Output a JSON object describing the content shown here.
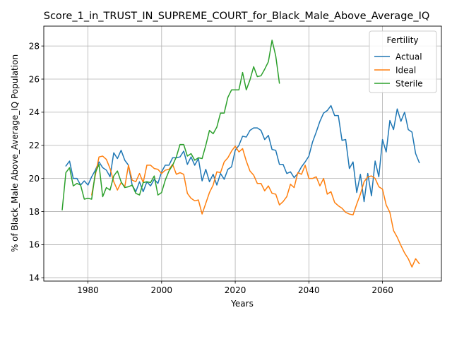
{
  "chart_data": {
    "type": "line",
    "title": "Score_1_in_TRUST_IN_SUPREME_COURT_for_Black_Male_Above_Average_IQ",
    "xlabel": "Years",
    "ylabel": "% of Black_Male Above_Average_IQ Population",
    "xlim": [
      1968,
      2076
    ],
    "ylim": [
      13.8,
      29.2
    ],
    "xticks": [
      1980,
      2000,
      2020,
      2040,
      2060
    ],
    "yticks": [
      14,
      16,
      18,
      20,
      22,
      24,
      26,
      28
    ],
    "grid": true,
    "legend": {
      "title": "Fertility",
      "placement": "top-right"
    },
    "series": [
      {
        "name": "Actual",
        "color": "#1f77b4",
        "x": [
          1974,
          1975,
          1976,
          1977,
          1978,
          1979,
          1980,
          1981,
          1982,
          1983,
          1984,
          1985,
          1986,
          1987,
          1988,
          1989,
          1990,
          1991,
          1992,
          1993,
          1994,
          1995,
          1996,
          1997,
          1998,
          1999,
          2000,
          2001,
          2002,
          2003,
          2004,
          2005,
          2006,
          2007,
          2008,
          2009,
          2010,
          2011,
          2012,
          2013,
          2014,
          2015,
          2016,
          2017,
          2018,
          2019,
          2020,
          2021,
          2022,
          2023,
          2024,
          2025,
          2026,
          2027,
          2028,
          2029,
          2030,
          2031,
          2032,
          2033,
          2034,
          2035,
          2036,
          2037,
          2038,
          2039,
          2040,
          2041,
          2042,
          2043,
          2044,
          2045,
          2046,
          2047,
          2048,
          2049,
          2050,
          2051,
          2052,
          2053,
          2054,
          2055,
          2056,
          2057,
          2058,
          2059,
          2060,
          2061,
          2062,
          2063,
          2064,
          2065,
          2066,
          2067,
          2068,
          2069,
          2070
        ],
        "y": [
          20.75,
          21.05,
          20.0,
          20.0,
          19.6,
          19.85,
          19.6,
          20.1,
          20.5,
          21.0,
          20.65,
          20.5,
          20.1,
          21.55,
          21.2,
          21.7,
          21.1,
          20.8,
          19.6,
          19.2,
          19.8,
          19.2,
          19.8,
          19.55,
          19.95,
          19.7,
          20.4,
          20.8,
          20.8,
          21.25,
          21.25,
          21.3,
          21.65,
          20.85,
          21.3,
          20.8,
          21.2,
          19.85,
          20.55,
          19.8,
          20.25,
          19.6,
          20.3,
          19.95,
          20.55,
          20.7,
          21.7,
          22.0,
          22.55,
          22.5,
          22.9,
          23.05,
          23.05,
          22.9,
          22.35,
          22.6,
          21.75,
          21.7,
          20.85,
          20.85,
          20.3,
          20.4,
          20.05,
          20.3,
          20.7,
          21.0,
          21.35,
          22.2,
          22.8,
          23.45,
          23.95,
          24.1,
          24.4,
          23.8,
          23.8,
          22.3,
          22.35,
          20.6,
          21.0,
          19.15,
          20.25,
          18.6,
          20.3,
          18.95,
          21.05,
          20.1,
          22.35,
          21.6,
          23.5,
          22.95,
          24.2,
          23.45,
          24.0,
          22.95,
          22.8,
          21.5,
          20.95
        ]
      },
      {
        "name": "Ideal",
        "color": "#ff7f0e",
        "x": [
          1981,
          1982,
          1983,
          1984,
          1985,
          1986,
          1987,
          1988,
          1989,
          1990,
          1991,
          1992,
          1993,
          1994,
          1995,
          1996,
          1997,
          1998,
          1999,
          2000,
          2001,
          2002,
          2003,
          2004,
          2005,
          2006,
          2007,
          2008,
          2009,
          2010,
          2011,
          2012,
          2013,
          2014,
          2015,
          2016,
          2017,
          2018,
          2019,
          2020,
          2021,
          2022,
          2023,
          2024,
          2025,
          2026,
          2027,
          2028,
          2029,
          2030,
          2031,
          2032,
          2033,
          2034,
          2035,
          2036,
          2037,
          2038,
          2039,
          2040,
          2041,
          2042,
          2043,
          2044,
          2045,
          2046,
          2047,
          2048,
          2049,
          2050,
          2051,
          2052,
          2053,
          2054,
          2055,
          2056,
          2057,
          2058,
          2059,
          2060,
          2061,
          2062,
          2063,
          2064,
          2065,
          2066,
          2067,
          2068,
          2069,
          2070
        ],
        "y": [
          19.0,
          20.2,
          21.3,
          21.35,
          21.15,
          20.6,
          19.8,
          19.3,
          19.75,
          19.5,
          20.8,
          19.9,
          19.8,
          20.3,
          19.75,
          20.8,
          20.8,
          20.6,
          20.55,
          20.3,
          20.5,
          20.55,
          20.85,
          20.25,
          20.35,
          20.25,
          19.1,
          18.8,
          18.65,
          18.7,
          17.85,
          18.5,
          19.15,
          19.6,
          20.4,
          20.35,
          21.0,
          21.25,
          21.65,
          21.95,
          21.6,
          21.8,
          21.05,
          20.45,
          20.2,
          19.7,
          19.7,
          19.25,
          19.55,
          19.1,
          19.05,
          18.4,
          18.6,
          18.9,
          19.65,
          19.45,
          20.35,
          20.25,
          20.8,
          20.0,
          20.0,
          20.1,
          19.55,
          20.0,
          19.05,
          19.2,
          18.55,
          18.35,
          18.2,
          17.95,
          17.85,
          17.8,
          18.45,
          19.05,
          19.8,
          20.1,
          20.15,
          20.0,
          19.5,
          19.35,
          18.4,
          17.95,
          16.85,
          16.45,
          15.95,
          15.5,
          15.15,
          14.65,
          15.15,
          14.85
        ]
      },
      {
        "name": "Sterile",
        "color": "#2ca02c",
        "x": [
          1973,
          1974,
          1975,
          1976,
          1977,
          1978,
          1979,
          1980,
          1981,
          1982,
          1983,
          1984,
          1985,
          1986,
          1987,
          1988,
          1989,
          1990,
          1991,
          1992,
          1993,
          1994,
          1995,
          1996,
          1997,
          1998,
          1999,
          2000,
          2001,
          2002,
          2003,
          2004,
          2005,
          2006,
          2007,
          2008,
          2009,
          2010,
          2011,
          2012,
          2013,
          2014,
          2015,
          2016,
          2017,
          2018,
          2019,
          2020,
          2021,
          2022,
          2023,
          2024,
          2025,
          2026,
          2027,
          2028,
          2029,
          2030,
          2031,
          2032
        ],
        "y": [
          18.1,
          20.35,
          20.65,
          19.55,
          19.7,
          19.6,
          18.75,
          18.8,
          18.75,
          20.35,
          20.85,
          18.9,
          19.45,
          19.3,
          20.15,
          20.45,
          19.8,
          19.45,
          19.5,
          19.6,
          19.1,
          19.0,
          19.75,
          19.8,
          19.75,
          20.15,
          19.0,
          19.15,
          19.9,
          20.45,
          20.8,
          21.3,
          22.05,
          22.05,
          21.35,
          21.5,
          21.1,
          21.25,
          21.2,
          22.0,
          22.9,
          22.7,
          23.1,
          23.95,
          23.95,
          24.9,
          25.35,
          25.35,
          25.35,
          26.4,
          25.35,
          25.95,
          26.75,
          26.15,
          26.2,
          26.6,
          27.05,
          28.35,
          27.4,
          25.75
        ]
      }
    ]
  }
}
